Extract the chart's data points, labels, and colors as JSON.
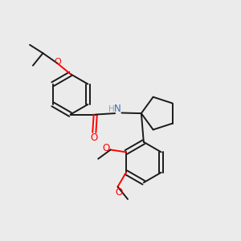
{
  "background_color": "#ebebeb",
  "bond_color": "#1a1a1a",
  "o_color": "#ff0000",
  "nh_color": "#4169aa",
  "h_color": "#7aacbb",
  "figsize": [
    3.0,
    3.0
  ],
  "dpi": 100,
  "xlim": [
    0,
    10
  ],
  "ylim": [
    0,
    10
  ]
}
